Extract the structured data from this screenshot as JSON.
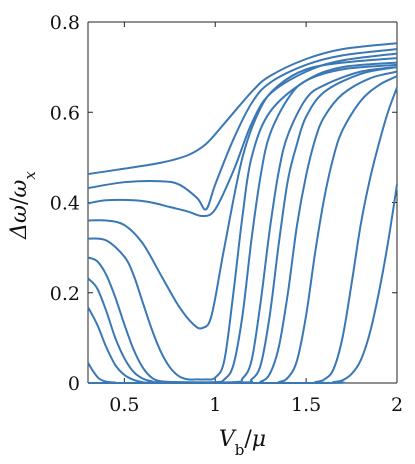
{
  "chart_data": {
    "type": "line",
    "xlabel": "Vb/μ",
    "ylabel": "Δω/ωx",
    "xlim": [
      0.3,
      2.0
    ],
    "ylim": [
      0,
      0.8
    ],
    "x_ticks": [
      0.5,
      1,
      1.5,
      2
    ],
    "x_tick_labels": [
      "0.5",
      "1",
      "1.5",
      "2"
    ],
    "y_ticks": [
      0,
      0.2,
      0.4,
      0.6,
      0.8
    ],
    "y_tick_labels": [
      "0",
      "0.2",
      "0.4",
      "0.6",
      "0.8"
    ],
    "grid": false,
    "line_color": "#3a78b5",
    "series": [
      {
        "x": [
          0.3,
          0.5,
          0.7,
          0.85,
          0.95,
          1.05,
          1.2,
          1.3,
          1.5,
          1.7,
          2.0
        ],
        "y": [
          0.463,
          0.475,
          0.488,
          0.505,
          0.53,
          0.575,
          0.645,
          0.68,
          0.718,
          0.74,
          0.753
        ]
      },
      {
        "x": [
          0.3,
          0.5,
          0.7,
          0.8,
          0.9,
          0.95,
          1.0,
          1.1,
          1.2,
          1.3,
          1.5,
          1.7,
          2.0
        ],
        "y": [
          0.432,
          0.445,
          0.447,
          0.44,
          0.41,
          0.385,
          0.44,
          0.54,
          0.62,
          0.665,
          0.705,
          0.726,
          0.74
        ]
      },
      {
        "x": [
          0.3,
          0.4,
          0.55,
          0.65,
          0.75,
          0.85,
          0.93,
          1.0,
          1.1,
          1.2,
          1.3,
          1.5,
          1.7,
          2.0
        ],
        "y": [
          0.398,
          0.405,
          0.405,
          0.4,
          0.39,
          0.38,
          0.37,
          0.385,
          0.47,
          0.575,
          0.64,
          0.69,
          0.715,
          0.73
        ]
      },
      {
        "x": [
          0.3,
          0.4,
          0.5,
          0.6,
          0.7,
          0.8,
          0.88,
          0.93,
          0.98,
          1.05,
          1.15,
          1.25,
          1.35,
          1.5,
          1.7,
          2.0
        ],
        "y": [
          0.36,
          0.36,
          0.35,
          0.31,
          0.24,
          0.17,
          0.13,
          0.122,
          0.15,
          0.3,
          0.5,
          0.61,
          0.66,
          0.695,
          0.71,
          0.72
        ]
      },
      {
        "x": [
          0.3,
          0.4,
          0.5,
          0.55,
          0.6,
          0.65,
          0.7,
          0.75,
          0.8,
          0.85,
          0.9,
          0.95,
          1.0,
          1.05,
          1.1,
          1.15,
          1.2,
          1.3,
          1.5,
          1.7,
          2.0
        ],
        "y": [
          0.32,
          0.316,
          0.28,
          0.24,
          0.18,
          0.12,
          0.07,
          0.035,
          0.015,
          0.008,
          0.008,
          0.008,
          0.012,
          0.05,
          0.2,
          0.37,
          0.5,
          0.6,
          0.67,
          0.7,
          0.71
        ]
      },
      {
        "x": [
          0.3,
          0.35,
          0.4,
          0.45,
          0.5,
          0.55,
          0.6,
          0.65,
          0.7,
          0.8,
          1.0,
          1.05,
          1.1,
          1.15,
          1.2,
          1.25,
          1.3,
          1.4,
          1.5,
          1.7,
          2.0
        ],
        "y": [
          0.278,
          0.27,
          0.24,
          0.19,
          0.13,
          0.075,
          0.035,
          0.012,
          0.004,
          0.002,
          0.002,
          0.008,
          0.04,
          0.15,
          0.32,
          0.46,
          0.55,
          0.63,
          0.67,
          0.695,
          0.705
        ]
      },
      {
        "x": [
          0.3,
          0.35,
          0.4,
          0.45,
          0.5,
          0.55,
          0.6,
          0.65,
          0.7,
          1.1,
          1.15,
          1.2,
          1.25,
          1.3,
          1.35,
          1.4,
          1.5,
          1.6,
          1.8,
          2.0
        ],
        "y": [
          0.232,
          0.21,
          0.16,
          0.1,
          0.055,
          0.025,
          0.01,
          0.004,
          0.002,
          0.002,
          0.01,
          0.05,
          0.18,
          0.34,
          0.47,
          0.55,
          0.63,
          0.66,
          0.69,
          0.7
        ]
      },
      {
        "x": [
          0.3,
          0.35,
          0.4,
          0.45,
          0.5,
          0.55,
          0.6,
          0.65,
          1.15,
          1.2,
          1.25,
          1.3,
          1.35,
          1.4,
          1.45,
          1.5,
          1.6,
          1.8,
          2.0
        ],
        "y": [
          0.168,
          0.13,
          0.08,
          0.04,
          0.018,
          0.007,
          0.002,
          0.001,
          0.001,
          0.008,
          0.04,
          0.15,
          0.31,
          0.45,
          0.53,
          0.59,
          0.645,
          0.685,
          0.7
        ]
      },
      {
        "x": [
          0.3,
          0.33,
          0.36,
          0.4,
          0.45,
          0.5,
          1.2,
          1.25,
          1.3,
          1.35,
          1.4,
          1.45,
          1.5,
          1.55,
          1.6,
          1.7,
          1.85,
          2.0
        ],
        "y": [
          0.045,
          0.025,
          0.01,
          0.003,
          0.001,
          0.0,
          0.0,
          0.003,
          0.02,
          0.08,
          0.2,
          0.35,
          0.46,
          0.54,
          0.59,
          0.64,
          0.675,
          0.69
        ]
      },
      {
        "x": [
          0.3,
          1.3,
          1.35,
          1.4,
          1.45,
          1.5,
          1.55,
          1.6,
          1.65,
          1.7,
          1.8,
          1.9,
          2.0
        ],
        "y": [
          0.0,
          0.0,
          0.002,
          0.012,
          0.05,
          0.15,
          0.29,
          0.41,
          0.5,
          0.56,
          0.625,
          0.66,
          0.68
        ]
      },
      {
        "x": [
          0.3,
          1.5,
          1.55,
          1.6,
          1.65,
          1.7,
          1.75,
          1.8,
          1.85,
          1.9,
          1.95,
          2.0
        ],
        "y": [
          0.0,
          0.0,
          0.002,
          0.008,
          0.03,
          0.1,
          0.22,
          0.35,
          0.45,
          0.53,
          0.6,
          0.655
        ]
      },
      {
        "x": [
          0.3,
          1.6,
          1.65,
          1.7,
          1.75,
          1.8,
          1.85,
          1.9,
          1.95,
          2.0
        ],
        "y": [
          0.0,
          0.0,
          0.002,
          0.006,
          0.02,
          0.05,
          0.11,
          0.2,
          0.31,
          0.44
        ]
      }
    ]
  }
}
